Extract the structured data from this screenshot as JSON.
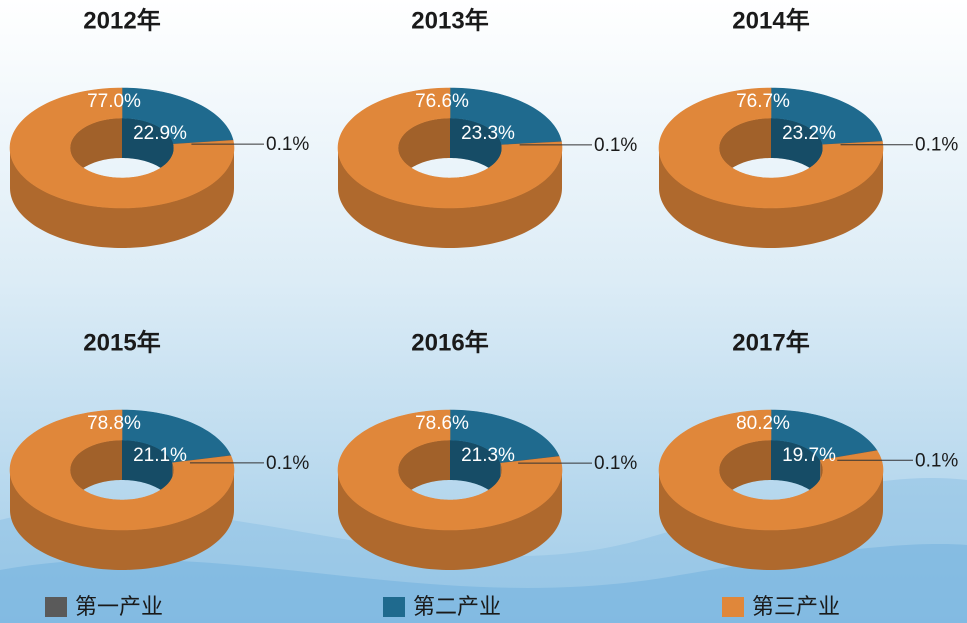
{
  "legend": {
    "names": [
      "第一产业",
      "第二产业",
      "第三产业"
    ],
    "colors": [
      "#5a5a5a",
      "#1f6a8e",
      "#e0873a"
    ]
  },
  "chart_data": [
    {
      "type": "pie",
      "title": "2012年",
      "values": [
        0.1,
        22.9,
        77.0
      ],
      "value_labels": [
        "0.1%",
        "22.9%",
        "77.0%"
      ]
    },
    {
      "type": "pie",
      "title": "2013年",
      "values": [
        0.1,
        23.3,
        76.6
      ],
      "value_labels": [
        "0.1%",
        "23.3%",
        "76.6%"
      ]
    },
    {
      "type": "pie",
      "title": "2014年",
      "values": [
        0.1,
        23.2,
        76.7
      ],
      "value_labels": [
        "0.1%",
        "23.2%",
        "76.7%"
      ]
    },
    {
      "type": "pie",
      "title": "2015年",
      "values": [
        0.1,
        21.1,
        78.8
      ],
      "value_labels": [
        "0.1%",
        "21.1%",
        "78.8%"
      ]
    },
    {
      "type": "pie",
      "title": "2016年",
      "values": [
        0.1,
        21.3,
        78.6
      ],
      "value_labels": [
        "0.1%",
        "21.3%",
        "78.6%"
      ]
    },
    {
      "type": "pie",
      "title": "2017年",
      "values": [
        0.1,
        19.7,
        80.2
      ],
      "value_labels": [
        "0.1%",
        "19.7%",
        "80.2%"
      ]
    }
  ]
}
